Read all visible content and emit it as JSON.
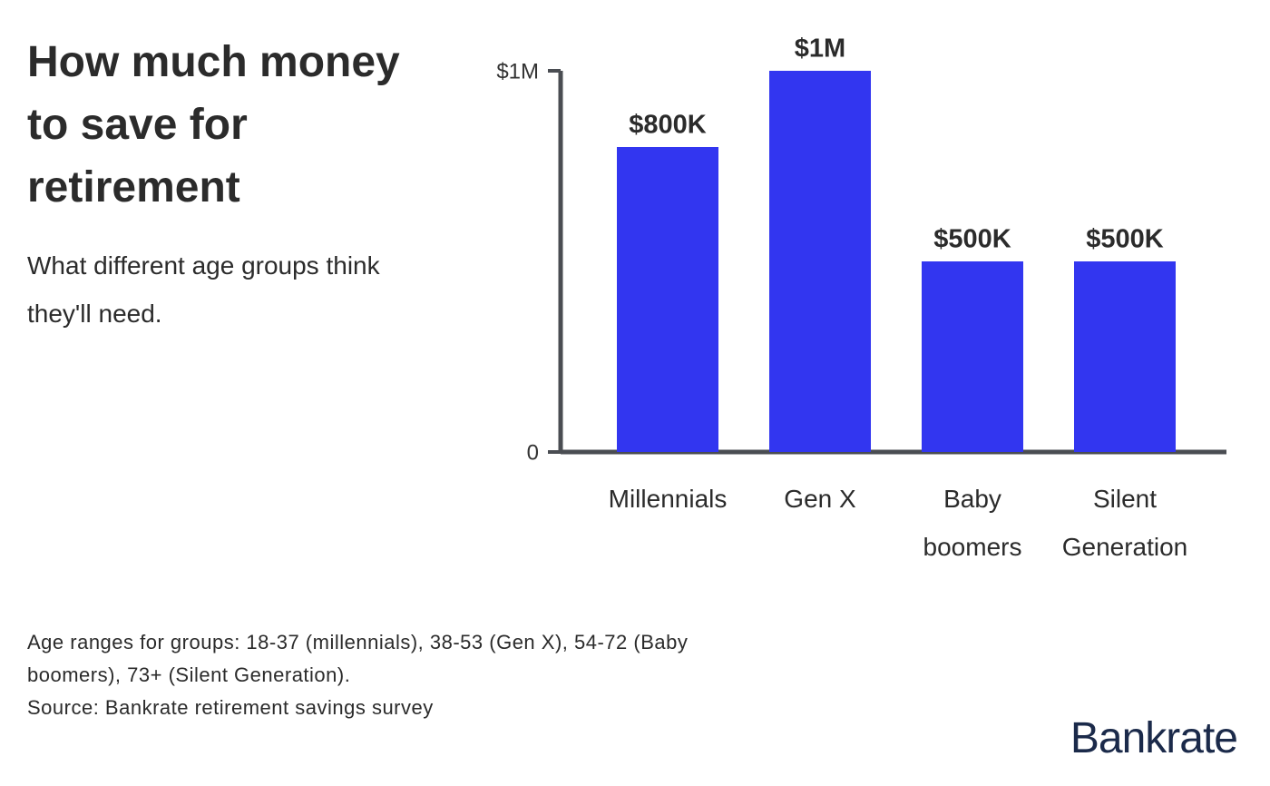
{
  "header": {
    "title": "How much money to save for retirement",
    "subtitle": "What different age groups think they'll need."
  },
  "chart_data": {
    "type": "bar",
    "categories": [
      "Millennials",
      "Gen X",
      "Baby boomers",
      "Silent Generation"
    ],
    "values": [
      800000,
      1000000,
      500000,
      500000
    ],
    "value_labels": [
      "$800K",
      "$1M",
      "$500K",
      "$500K"
    ],
    "color": "#3236f0",
    "ylim": [
      0,
      1000000
    ],
    "yticks": [
      0,
      {
        "value": 1000000,
        "label": "$1M"
      }
    ]
  },
  "footer": {
    "note": "Age ranges for groups: 18-37 (millennials), 38-53 (Gen X), 54-72 (Baby boomers), 73+ (Silent Generation).",
    "source": "Source: Bankrate retirement savings survey",
    "logo": "Bankrate"
  }
}
